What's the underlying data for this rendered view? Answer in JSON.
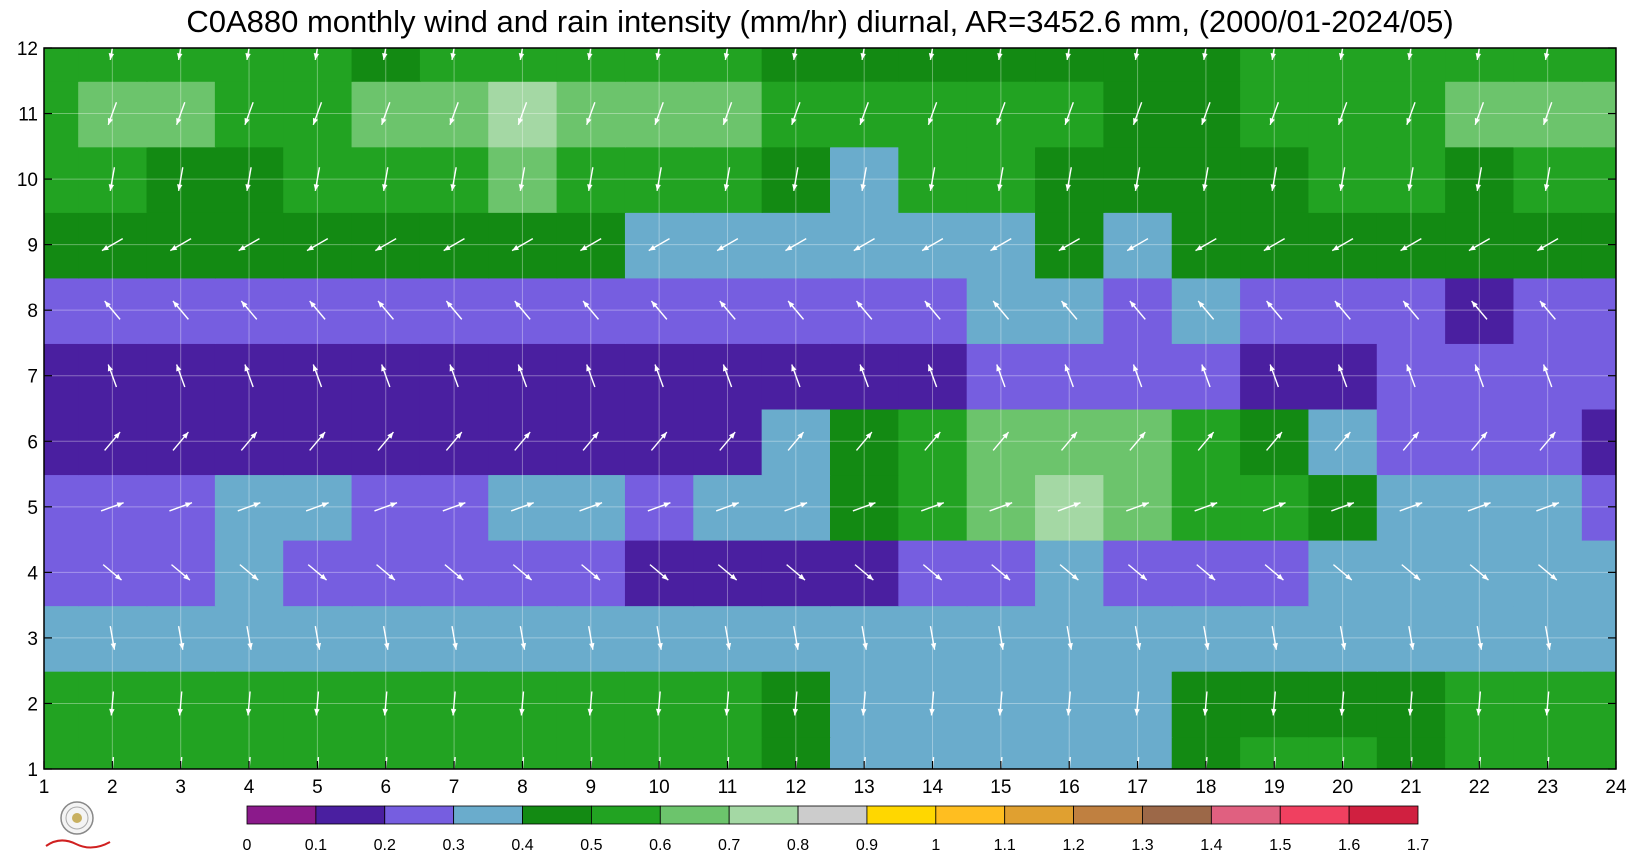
{
  "chart_data": {
    "type": "heatmap",
    "title": "C0A880 monthly wind and rain intensity (mm/hr) diurnal, AR=3452.6 mm, (2000/01-2024/05)",
    "xlabel": "",
    "ylabel": "",
    "x_ticks": [
      "1",
      "2",
      "3",
      "4",
      "5",
      "6",
      "7",
      "8",
      "9",
      "10",
      "11",
      "12",
      "13",
      "14",
      "15",
      "16",
      "17",
      "18",
      "19",
      "20",
      "21",
      "22",
      "23",
      "24"
    ],
    "y_ticks": [
      "1",
      "2",
      "3",
      "4",
      "5",
      "6",
      "7",
      "8",
      "9",
      "10",
      "11",
      "12"
    ],
    "xlim": [
      1,
      24
    ],
    "ylim": [
      1,
      12
    ],
    "colorbar": {
      "labels": [
        "0",
        "0.1",
        "0.2",
        "0.3",
        "0.4",
        "0.5",
        "0.6",
        "0.7",
        "0.8",
        "0.9",
        "1",
        "1.1",
        "1.2",
        "1.3",
        "1.4",
        "1.5",
        "1.6",
        "1.7"
      ],
      "colors": [
        "#8b1a8b",
        "#4a1fa0",
        "#765ee0",
        "#6aaccc",
        "#138a13",
        "#22a322",
        "#6cc46c",
        "#a4d8a4",
        "#cccccc",
        "#ffd700",
        "#ffbe20",
        "#e0a030",
        "#c08040",
        "#9c6848",
        "#e06080",
        "#f04060",
        "#d02040"
      ]
    },
    "hours": [
      1,
      2,
      3,
      4,
      5,
      6,
      7,
      8,
      9,
      10,
      11,
      12,
      13,
      14,
      15,
      16,
      17,
      18,
      19,
      20,
      21,
      22,
      23,
      24
    ],
    "months": [
      1,
      2,
      3,
      4,
      5,
      6,
      7,
      8,
      9,
      10,
      11,
      12
    ],
    "intensity": [
      [
        0.55,
        0.55,
        0.55,
        0.55,
        0.55,
        0.55,
        0.55,
        0.55,
        0.55,
        0.55,
        0.5,
        0.45,
        0.35,
        0.35,
        0.35,
        0.35,
        0.35,
        0.45,
        0.5,
        0.5,
        0.45,
        0.5,
        0.55,
        0.5
      ],
      [
        0.55,
        0.55,
        0.55,
        0.55,
        0.55,
        0.55,
        0.55,
        0.55,
        0.55,
        0.55,
        0.55,
        0.45,
        0.35,
        0.35,
        0.35,
        0.35,
        0.35,
        0.45,
        0.45,
        0.45,
        0.45,
        0.5,
        0.55,
        0.5
      ],
      [
        0.35,
        0.35,
        0.35,
        0.35,
        0.35,
        0.35,
        0.35,
        0.35,
        0.35,
        0.35,
        0.35,
        0.35,
        0.35,
        0.35,
        0.35,
        0.35,
        0.35,
        0.35,
        0.35,
        0.35,
        0.35,
        0.35,
        0.35,
        0.35
      ],
      [
        0.25,
        0.25,
        0.25,
        0.35,
        0.25,
        0.25,
        0.25,
        0.25,
        0.25,
        0.15,
        0.15,
        0.15,
        0.15,
        0.25,
        0.25,
        0.35,
        0.25,
        0.25,
        0.25,
        0.35,
        0.35,
        0.35,
        0.35,
        0.35
      ],
      [
        0.25,
        0.25,
        0.25,
        0.35,
        0.35,
        0.25,
        0.25,
        0.35,
        0.35,
        0.25,
        0.35,
        0.35,
        0.45,
        0.55,
        0.65,
        0.75,
        0.65,
        0.55,
        0.55,
        0.45,
        0.35,
        0.35,
        0.35,
        0.25
      ],
      [
        0.15,
        0.15,
        0.15,
        0.15,
        0.15,
        0.15,
        0.15,
        0.15,
        0.15,
        0.15,
        0.15,
        0.35,
        0.45,
        0.55,
        0.65,
        0.65,
        0.65,
        0.55,
        0.45,
        0.35,
        0.25,
        0.25,
        0.25,
        0.15
      ],
      [
        0.15,
        0.15,
        0.15,
        0.15,
        0.15,
        0.15,
        0.15,
        0.15,
        0.15,
        0.15,
        0.15,
        0.15,
        0.15,
        0.15,
        0.25,
        0.25,
        0.25,
        0.25,
        0.15,
        0.15,
        0.25,
        0.25,
        0.25,
        0.25
      ],
      [
        0.25,
        0.25,
        0.25,
        0.25,
        0.25,
        0.25,
        0.25,
        0.25,
        0.25,
        0.25,
        0.25,
        0.25,
        0.25,
        0.25,
        0.35,
        0.35,
        0.25,
        0.35,
        0.25,
        0.25,
        0.25,
        0.15,
        0.25,
        0.25
      ],
      [
        0.45,
        0.45,
        0.45,
        0.45,
        0.45,
        0.45,
        0.45,
        0.45,
        0.45,
        0.35,
        0.35,
        0.35,
        0.35,
        0.35,
        0.35,
        0.45,
        0.35,
        0.45,
        0.45,
        0.45,
        0.45,
        0.45,
        0.45,
        0.45
      ],
      [
        0.55,
        0.55,
        0.45,
        0.45,
        0.55,
        0.55,
        0.55,
        0.65,
        0.55,
        0.55,
        0.55,
        0.45,
        0.35,
        0.55,
        0.55,
        0.45,
        0.45,
        0.45,
        0.45,
        0.55,
        0.55,
        0.45,
        0.55,
        0.55
      ],
      [
        0.55,
        0.65,
        0.65,
        0.55,
        0.55,
        0.65,
        0.65,
        0.75,
        0.65,
        0.65,
        0.65,
        0.55,
        0.55,
        0.55,
        0.55,
        0.55,
        0.45,
        0.45,
        0.55,
        0.55,
        0.55,
        0.65,
        0.65,
        0.65
      ],
      [
        0.55,
        0.55,
        0.55,
        0.55,
        0.55,
        0.45,
        0.55,
        0.55,
        0.55,
        0.55,
        0.55,
        0.45,
        0.45,
        0.45,
        0.45,
        0.45,
        0.45,
        0.45,
        0.55,
        0.55,
        0.55,
        0.55,
        0.55,
        0.55
      ]
    ],
    "wind": {
      "description": "white arrows per month/hour",
      "rows": [
        {
          "month": 12,
          "dir_deg": 190
        },
        {
          "month": 11,
          "dir_deg": 200
        },
        {
          "month": 10,
          "dir_deg": 190
        },
        {
          "month": 9,
          "dir_deg": 240
        },
        {
          "month": 8,
          "dir_deg": 320
        },
        {
          "month": 7,
          "dir_deg": 340
        },
        {
          "month": 6,
          "dir_deg": 40
        },
        {
          "month": 5,
          "dir_deg": 70
        },
        {
          "month": 4,
          "dir_deg": 130
        },
        {
          "month": 3,
          "dir_deg": 170
        },
        {
          "month": 2,
          "dir_deg": 185
        },
        {
          "month": 1,
          "dir_deg": 185
        }
      ]
    }
  }
}
